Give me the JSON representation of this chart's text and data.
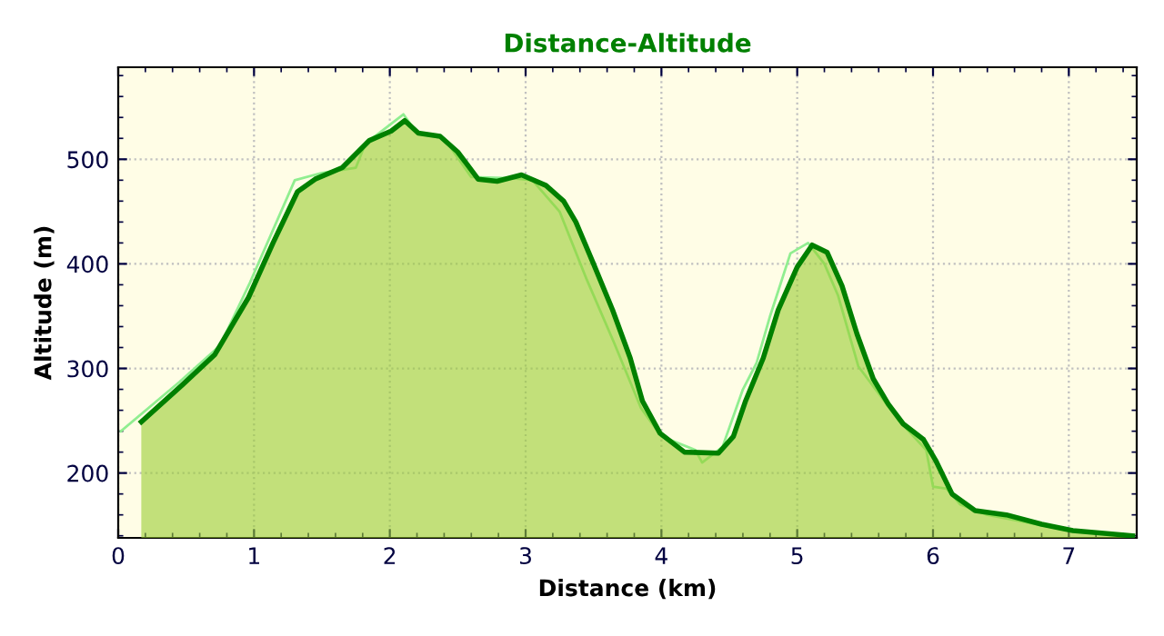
{
  "chart_data": {
    "type": "area",
    "title": "Distance-Altitude",
    "xlabel": "Distance (km)",
    "ylabel": "Altitude (m)",
    "xlim": [
      0,
      7.5
    ],
    "ylim": [
      138,
      588
    ],
    "xticks": [
      0,
      1,
      2,
      3,
      4,
      5,
      6,
      7
    ],
    "yticks": [
      200,
      300,
      400,
      500
    ],
    "grid": true,
    "line_style": "solid",
    "series": [
      {
        "type": "line",
        "color": "#90ee90",
        "x": [
          0.02,
          0.45,
          0.75,
          0.97,
          1.3,
          1.5,
          1.75,
          1.82,
          2.1,
          2.2,
          2.4,
          2.6,
          2.9,
          3.05,
          3.25,
          3.45,
          3.65,
          3.85,
          4.0,
          4.25,
          4.3,
          4.45,
          4.6,
          4.7,
          4.8,
          4.95,
          5.08,
          5.2,
          5.3,
          5.45,
          5.75,
          5.95,
          6.0,
          6.1,
          6.2,
          6.4,
          6.8,
          7.0,
          7.45
        ],
        "values": [
          240,
          287,
          322,
          382,
          480,
          487,
          492,
          515,
          543,
          525,
          520,
          483,
          482,
          480,
          450,
          385,
          325,
          262,
          235,
          222,
          210,
          225,
          280,
          305,
          350,
          410,
          420,
          400,
          370,
          302,
          250,
          222,
          187,
          185,
          170,
          160,
          150,
          145,
          141
        ]
      },
      {
        "color": "#008000",
        "x": [
          0.17,
          0.47,
          0.71,
          0.96,
          1.14,
          1.32,
          1.45,
          1.65,
          1.85,
          2.01,
          2.11,
          2.21,
          2.37,
          2.5,
          2.65,
          2.79,
          2.97,
          3.15,
          3.28,
          3.37,
          3.5,
          3.64,
          3.77,
          3.86,
          3.99,
          4.17,
          4.42,
          4.53,
          4.62,
          4.75,
          4.86,
          5.0,
          5.11,
          5.22,
          5.33,
          5.44,
          5.56,
          5.67,
          5.78,
          5.93,
          6.02,
          6.14,
          6.31,
          6.54,
          6.8,
          7.03,
          7.47
        ],
        "values": [
          249,
          284,
          313,
          368,
          420,
          469,
          481,
          492,
          518,
          527,
          537,
          525,
          522,
          507,
          481,
          479,
          485,
          475,
          460,
          440,
          400,
          356,
          310,
          269,
          238,
          220,
          219,
          235,
          269,
          310,
          356,
          397,
          418,
          411,
          379,
          333,
          290,
          266,
          247,
          232,
          212,
          180,
          164,
          160,
          151,
          145,
          140
        ]
      }
    ]
  }
}
